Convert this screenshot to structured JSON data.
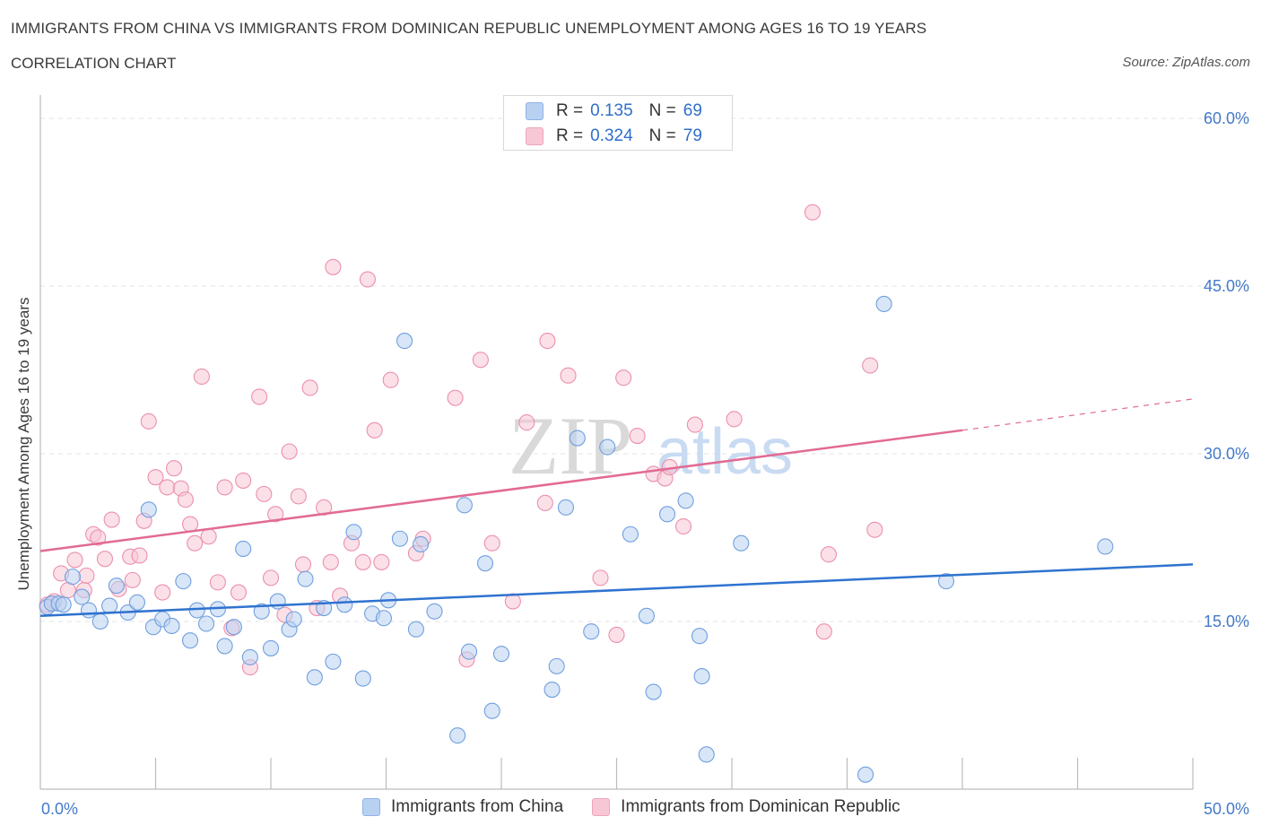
{
  "header": {
    "title": "IMMIGRANTS FROM CHINA VS IMMIGRANTS FROM DOMINICAN REPUBLIC UNEMPLOYMENT AMONG AGES 16 TO 19 YEARS",
    "subtitle": "CORRELATION CHART",
    "source": "Source: ZipAtlas.com"
  },
  "legend_top": {
    "rows": [
      {
        "r_label": "R =",
        "r_value": "0.135",
        "n_label": "N =",
        "n_value": "69"
      },
      {
        "r_label": "R =",
        "r_value": "0.324",
        "n_label": "N =",
        "n_value": "79"
      }
    ]
  },
  "legend_bottom": {
    "items": [
      "Immigrants from China",
      "Immigrants from Dominican Republic"
    ]
  },
  "watermark": {
    "zip": "ZIP",
    "atlas": "atlas"
  },
  "colors": {
    "china": "#6f9fdf",
    "china_fill": "#b9d1f1",
    "china_line": "#2f73cf",
    "dominican": "#ec8fad",
    "dominican_fill": "#f8c7d6",
    "dominican_line": "#e26a93",
    "tick_label": "#4479c9",
    "grid": "#e3e3e3"
  },
  "chart_data": {
    "type": "scatter",
    "title": "IMMIGRANTS FROM CHINA VS IMMIGRANTS FROM DOMINICAN REPUBLIC UNEMPLOYMENT AMONG AGES 16 TO 19 YEARS",
    "ylabel": "Unemployment Among Ages 16 to 19 years",
    "xlim": [
      0,
      50
    ],
    "ylim": [
      0,
      60
    ],
    "x_tick_labels": [
      "0.0%",
      "50.0%"
    ],
    "y_ticks": [
      15,
      30,
      45,
      60
    ],
    "y_tick_labels": [
      "15.0%",
      "30.0%",
      "45.0%",
      "60.0%"
    ],
    "grid": true,
    "legend_position": "top-center",
    "series": [
      {
        "name": "Immigrants from China",
        "color": "#6f9fdf",
        "trend": {
          "x0": 0,
          "y0": 15.5,
          "x1": 50,
          "y1": 20.1
        },
        "points": [
          [
            0.3,
            16.3
          ],
          [
            0.5,
            16.6
          ],
          [
            0.8,
            16.6
          ],
          [
            1.0,
            16.5
          ],
          [
            1.4,
            19.0
          ],
          [
            1.8,
            17.2
          ],
          [
            2.1,
            16.0
          ],
          [
            2.6,
            15.0
          ],
          [
            3.0,
            16.4
          ],
          [
            3.3,
            18.2
          ],
          [
            3.8,
            15.8
          ],
          [
            4.2,
            16.7
          ],
          [
            4.7,
            25.0
          ],
          [
            4.9,
            14.5
          ],
          [
            5.3,
            15.2
          ],
          [
            5.7,
            14.6
          ],
          [
            6.2,
            18.6
          ],
          [
            6.5,
            13.3
          ],
          [
            6.8,
            16.0
          ],
          [
            7.2,
            14.8
          ],
          [
            7.7,
            16.1
          ],
          [
            8.0,
            12.8
          ],
          [
            8.4,
            14.5
          ],
          [
            8.8,
            21.5
          ],
          [
            9.1,
            11.8
          ],
          [
            9.6,
            15.9
          ],
          [
            10.0,
            12.6
          ],
          [
            10.3,
            16.8
          ],
          [
            10.8,
            14.3
          ],
          [
            11.0,
            15.2
          ],
          [
            11.5,
            18.8
          ],
          [
            11.9,
            10.0
          ],
          [
            12.3,
            16.2
          ],
          [
            12.7,
            11.4
          ],
          [
            13.2,
            16.5
          ],
          [
            13.6,
            23.0
          ],
          [
            14.0,
            9.9
          ],
          [
            14.4,
            15.7
          ],
          [
            14.9,
            15.3
          ],
          [
            15.1,
            16.9
          ],
          [
            15.6,
            22.4
          ],
          [
            15.8,
            40.1
          ],
          [
            16.3,
            14.3
          ],
          [
            16.5,
            21.9
          ],
          [
            17.1,
            15.9
          ],
          [
            18.1,
            4.8
          ],
          [
            18.4,
            25.4
          ],
          [
            18.6,
            12.3
          ],
          [
            19.3,
            20.2
          ],
          [
            19.6,
            7.0
          ],
          [
            20.0,
            12.1
          ],
          [
            22.2,
            8.9
          ],
          [
            22.4,
            11.0
          ],
          [
            22.8,
            25.2
          ],
          [
            23.3,
            31.4
          ],
          [
            23.9,
            14.1
          ],
          [
            24.6,
            30.6
          ],
          [
            25.6,
            22.8
          ],
          [
            26.3,
            15.5
          ],
          [
            26.6,
            8.7
          ],
          [
            27.2,
            24.6
          ],
          [
            28.0,
            25.8
          ],
          [
            28.6,
            13.7
          ],
          [
            28.7,
            10.1
          ],
          [
            28.9,
            3.1
          ],
          [
            30.4,
            22.0
          ],
          [
            35.8,
            1.3
          ],
          [
            36.6,
            43.4
          ],
          [
            39.3,
            18.6
          ],
          [
            46.2,
            21.7
          ]
        ]
      },
      {
        "name": "Immigrants from Dominican Republic",
        "color": "#ec8fad",
        "trend": {
          "x0": 0,
          "y0": 21.3,
          "x1": 40,
          "y1": 32.1,
          "dash_x1": 50,
          "dash_y1": 34.9
        },
        "points": [
          [
            0.3,
            16.5
          ],
          [
            0.6,
            16.8
          ],
          [
            0.9,
            19.3
          ],
          [
            1.2,
            17.8
          ],
          [
            1.5,
            20.5
          ],
          [
            1.9,
            17.8
          ],
          [
            2.0,
            19.1
          ],
          [
            2.3,
            22.8
          ],
          [
            2.5,
            22.5
          ],
          [
            2.8,
            20.6
          ],
          [
            3.1,
            24.1
          ],
          [
            3.4,
            17.9
          ],
          [
            3.9,
            20.8
          ],
          [
            4.0,
            18.7
          ],
          [
            4.3,
            20.9
          ],
          [
            4.5,
            24.0
          ],
          [
            4.7,
            32.9
          ],
          [
            5.0,
            27.9
          ],
          [
            5.3,
            17.6
          ],
          [
            5.5,
            27.0
          ],
          [
            5.8,
            28.7
          ],
          [
            6.1,
            26.9
          ],
          [
            6.3,
            25.9
          ],
          [
            6.5,
            23.7
          ],
          [
            6.7,
            22.0
          ],
          [
            7.0,
            36.9
          ],
          [
            7.3,
            22.6
          ],
          [
            7.7,
            18.5
          ],
          [
            8.0,
            27.0
          ],
          [
            8.3,
            14.4
          ],
          [
            8.6,
            17.6
          ],
          [
            8.8,
            27.6
          ],
          [
            9.1,
            10.9
          ],
          [
            9.5,
            35.1
          ],
          [
            9.7,
            26.4
          ],
          [
            10.0,
            18.9
          ],
          [
            10.2,
            24.6
          ],
          [
            10.6,
            15.6
          ],
          [
            10.8,
            30.2
          ],
          [
            11.2,
            26.2
          ],
          [
            11.4,
            20.1
          ],
          [
            11.7,
            35.9
          ],
          [
            12.0,
            16.2
          ],
          [
            12.3,
            25.2
          ],
          [
            12.6,
            20.3
          ],
          [
            12.7,
            46.7
          ],
          [
            13.0,
            17.3
          ],
          [
            13.5,
            22.0
          ],
          [
            14.0,
            20.3
          ],
          [
            14.2,
            45.6
          ],
          [
            14.5,
            32.1
          ],
          [
            14.8,
            20.3
          ],
          [
            15.2,
            36.6
          ],
          [
            16.3,
            21.1
          ],
          [
            16.6,
            22.4
          ],
          [
            18.0,
            35.0
          ],
          [
            18.5,
            11.6
          ],
          [
            19.1,
            38.4
          ],
          [
            19.6,
            22.0
          ],
          [
            20.5,
            16.8
          ],
          [
            21.1,
            32.8
          ],
          [
            21.9,
            25.6
          ],
          [
            22.0,
            40.1
          ],
          [
            22.9,
            37.0
          ],
          [
            24.3,
            18.9
          ],
          [
            25.0,
            13.8
          ],
          [
            25.3,
            36.8
          ],
          [
            25.9,
            31.6
          ],
          [
            26.6,
            28.2
          ],
          [
            27.1,
            27.8
          ],
          [
            27.3,
            28.8
          ],
          [
            27.9,
            23.5
          ],
          [
            28.4,
            32.6
          ],
          [
            30.1,
            33.1
          ],
          [
            33.5,
            51.6
          ],
          [
            34.0,
            14.1
          ],
          [
            34.2,
            21.0
          ],
          [
            36.0,
            37.9
          ],
          [
            36.2,
            23.2
          ]
        ]
      }
    ]
  }
}
